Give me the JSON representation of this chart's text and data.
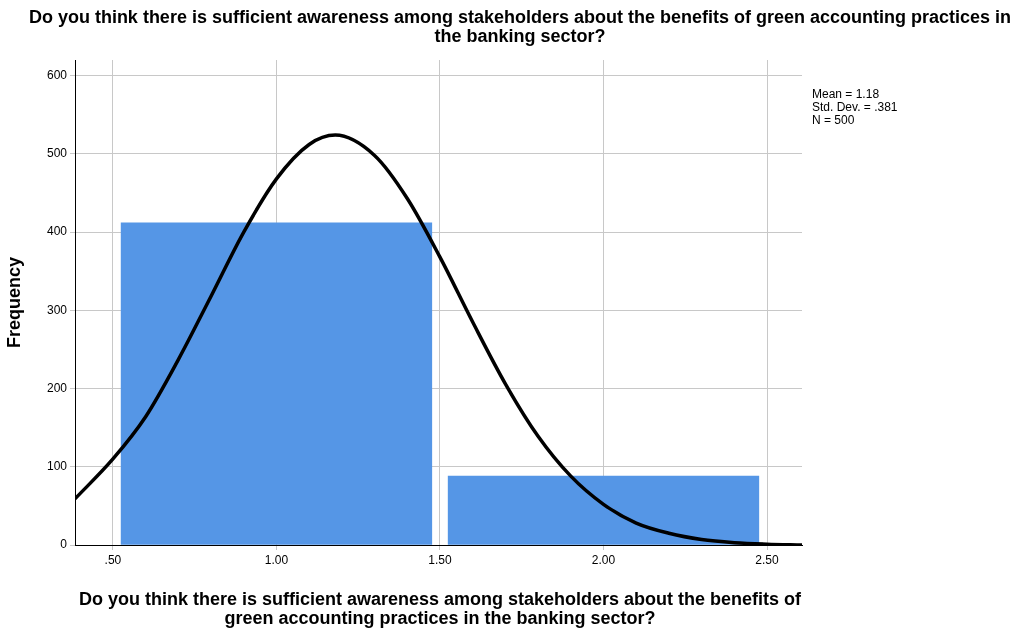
{
  "chart_data": {
    "type": "histogram",
    "title": "Do you think there is sufficient awareness among stakeholders about the benefits of green accounting practices in the banking sector?",
    "xlabel": "Do you think there is sufficient awareness among stakeholders about the benefits of green accounting practices in the banking sector?",
    "ylabel": "Frequency",
    "bins": [
      0.5,
      1.5,
      2.5
    ],
    "values": [
      412,
      88
    ],
    "color": "#5596e6",
    "series": [
      {
        "type": "line",
        "color": "#000000",
        "x": [
          0.384,
          0.5,
          0.6,
          0.7,
          0.8,
          0.9,
          1.0,
          1.1,
          1.18,
          1.3,
          1.4,
          1.5,
          1.6,
          1.7,
          1.8,
          1.9,
          2.0,
          2.1,
          2.2,
          2.3,
          2.4,
          2.5,
          2.607
        ],
        "values": [
          59,
          110,
          164,
          237,
          318,
          400,
          468,
          512,
          524,
          498,
          443,
          368,
          285,
          206,
          139,
          88,
          52,
          28,
          15,
          7,
          3,
          1,
          0
        ]
      }
    ],
    "xlim": [
      0.384,
      2.607
    ],
    "xticks": [
      {
        "value": 0.5,
        "label": ".50"
      },
      {
        "value": 1.0,
        "label": "1.00"
      },
      {
        "value": 1.5,
        "label": "1.50"
      },
      {
        "value": 2.0,
        "label": "2.00"
      },
      {
        "value": 2.5,
        "label": "2.50"
      }
    ],
    "ylim": [
      0,
      620
    ],
    "yticks": [
      0,
      100,
      200,
      300,
      400,
      500,
      600
    ],
    "grid": true,
    "legend": false,
    "marker": "none",
    "annotations": [
      "Mean = 1.18",
      "Std. Dev. = .381",
      "N = 500"
    ]
  }
}
